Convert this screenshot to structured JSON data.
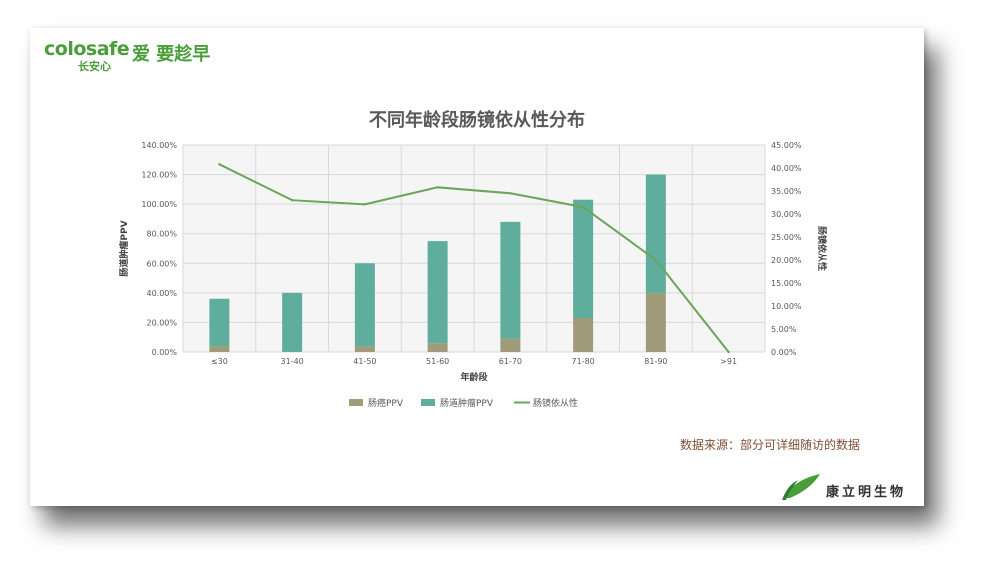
{
  "brand": {
    "logo_text": "colosafe",
    "logo_cn": "长安心",
    "slogan": "爱 要趁早"
  },
  "chart_data": {
    "type": "bar",
    "title": "不同年龄段肠镜依从性分布",
    "xlabel": "年龄段",
    "ylabel_left": "肠道肿瘤PPV",
    "ylabel_right": "肠镜依从性",
    "categories": [
      "≤30",
      "31-40",
      "41-50",
      "51-60",
      "61-70",
      "71-80",
      "81-90",
      ">91"
    ],
    "y_left_ticks": [
      "0.00%",
      "20.00%",
      "40.00%",
      "60.00%",
      "80.00%",
      "100.00%",
      "120.00%",
      "140.00%"
    ],
    "y_right_ticks": [
      "0.00%",
      "5.00%",
      "10.00%",
      "15.00%",
      "20.00%",
      "25.00%",
      "30.00%",
      "35.00%",
      "40.00%",
      "45.00%"
    ],
    "ylim_left": [
      0,
      140
    ],
    "ylim_right": [
      0,
      45
    ],
    "series": [
      {
        "name": "肠癌PPV",
        "type": "stacked-bar",
        "axis": "left",
        "color": "#a09c7b",
        "values": [
          4,
          0,
          4,
          6,
          9,
          23,
          40,
          0
        ]
      },
      {
        "name": "肠道肿瘤PPV",
        "type": "stacked-bar",
        "axis": "left",
        "color": "#5fad9c",
        "values": [
          36,
          40,
          60,
          75,
          88,
          103,
          120,
          0
        ]
      },
      {
        "name": "肠镜依从性",
        "type": "line",
        "axis": "right",
        "color": "#6aa55a",
        "values": [
          40.8,
          33.0,
          32.1,
          35.8,
          34.5,
          31.5,
          20.0,
          0
        ]
      }
    ],
    "grid": true,
    "legend": "bottom"
  },
  "source_note": "数据来源：部分可详细随访的数据",
  "company": {
    "name": "康立明生物"
  },
  "colors": {
    "brand_green": "#4a9e3a"
  }
}
